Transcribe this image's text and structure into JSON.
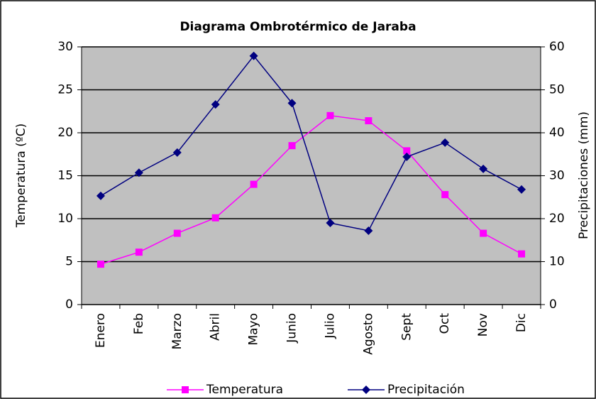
{
  "chart_data": {
    "type": "line",
    "title": "Diagrama Ombrotérmico de Jaraba",
    "y_label": "Temperatura (ºC)",
    "y2_label": "Precipitaciones (mm)",
    "categories": [
      "Enero",
      "Feb",
      "Marzo",
      "Abril",
      "Mayo",
      "Junio",
      "Julio",
      "Agosto",
      "Sept",
      "Oct",
      "Nov",
      "Dic"
    ],
    "series": [
      {
        "name": "Temperatura",
        "color": "#ff00ff",
        "marker": "square",
        "values": [
          4.7,
          6.1,
          8.3,
          10.1,
          14.0,
          18.5,
          22.0,
          21.4,
          17.9,
          12.8,
          8.3,
          5.9
        ]
      },
      {
        "name": "Precipitación",
        "color": "#000080",
        "marker": "diamond",
        "axis": "y2",
        "values": [
          25.3,
          30.7,
          35.4,
          46.6,
          57.9,
          46.9,
          19.0,
          17.2,
          34.4,
          37.7,
          31.6,
          26.8
        ]
      }
    ],
    "ylim": [
      0,
      30
    ],
    "yticks": [
      0,
      5,
      10,
      15,
      20,
      25,
      30
    ],
    "y2lim": [
      0,
      60
    ],
    "y2ticks": [
      0,
      10,
      20,
      30,
      40,
      50,
      60
    ],
    "grid": true,
    "plot_background": "#c0c0c0",
    "legend": "bottom"
  }
}
